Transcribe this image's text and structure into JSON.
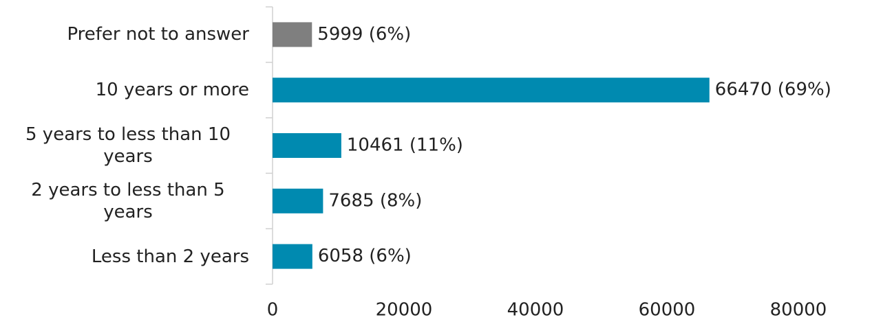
{
  "chart_data": {
    "type": "barh",
    "categories": [
      "Prefer not to answer",
      "10 years or more",
      "5 years to less than 10 years",
      "2 years to less than 5 years",
      "Less than 2 years"
    ],
    "values": [
      5999,
      66470,
      10461,
      7685,
      6058
    ],
    "value_labels": [
      "5999 (6%)",
      "66470 (69%)",
      "10461 (11%)",
      "7685 (8%)",
      "6058 (6%)"
    ],
    "colors": [
      "#7f7f7f",
      "#008ab0",
      "#008ab0",
      "#008ab0",
      "#008ab0"
    ],
    "xlim": [
      0,
      90000
    ],
    "xticks": [
      0,
      20000,
      40000,
      60000,
      80000
    ]
  }
}
